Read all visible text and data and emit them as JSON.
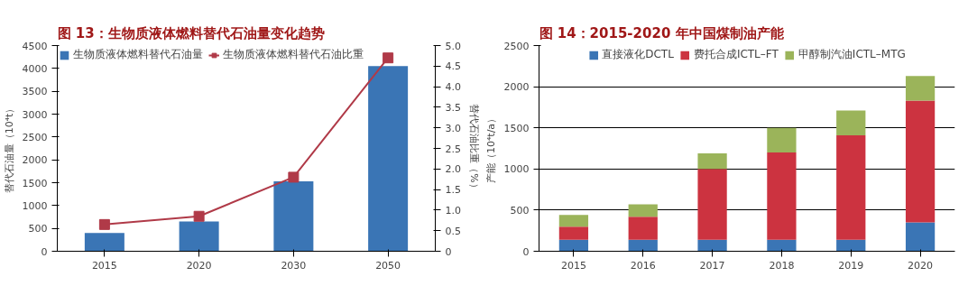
{
  "chart_data": [
    {
      "type": "bar",
      "title": "图 13：生物质液体燃料替代石油量变化趋势",
      "categories": [
        "2015",
        "2020",
        "2030",
        "2050"
      ],
      "ylabel": "替代石油量（10⁴t）",
      "y2label": "替代石油比重（%）",
      "ylim": [
        0,
        4500
      ],
      "yticks": [
        0,
        500,
        1000,
        1500,
        2000,
        2500,
        3000,
        3500,
        4000,
        4500
      ],
      "y2lim": [
        0,
        5
      ],
      "y2ticks": [
        0,
        0.5,
        {
          "value": 1,
          "label": "1.0"
        },
        1.5,
        {
          "value": 2,
          "label": "2.0"
        },
        2.5,
        {
          "value": 3,
          "label": "3.0"
        },
        3.5,
        {
          "value": 4,
          "label": "4.0"
        },
        4.5,
        {
          "value": 5,
          "label": "5.0"
        }
      ],
      "grid": false,
      "legend": "top left",
      "series": [
        {
          "name": "生物质液体燃料替代石油量",
          "type": "bar",
          "color": "#3a75b5",
          "values": [
            400,
            650,
            1530,
            4050
          ]
        },
        {
          "name": "生物质液体燃料替代石油比重",
          "type": "line",
          "axis": "y2",
          "marker": "square",
          "color": "#b03a48",
          "values": [
            0.65,
            0.85,
            1.8,
            4.7
          ]
        }
      ]
    },
    {
      "type": "bar",
      "title": "图 14：2015-2020 年中国煤制油产能",
      "categories": [
        "2015",
        "2016",
        "2017",
        "2018",
        "2019",
        "2020"
      ],
      "ylabel": "产能（10⁴t/a）",
      "ylim": [
        0,
        2500
      ],
      "yticks": [
        0,
        500,
        1000,
        1500,
        2000,
        2500
      ],
      "grid": "y",
      "legend": "top",
      "stacked": true,
      "series": [
        {
          "name": "直接液化DCTL",
          "color": "#3a75b5",
          "values": [
            140,
            140,
            140,
            140,
            140,
            350
          ]
        },
        {
          "name": "费托合成ICTL–FT",
          "color": "#cc3340",
          "values": [
            160,
            280,
            860,
            1060,
            1270,
            1480
          ]
        },
        {
          "name": "甲醇制汽油ICTL–MTG",
          "color": "#9bb45a",
          "values": [
            140,
            150,
            190,
            300,
            300,
            300
          ]
        }
      ]
    }
  ]
}
